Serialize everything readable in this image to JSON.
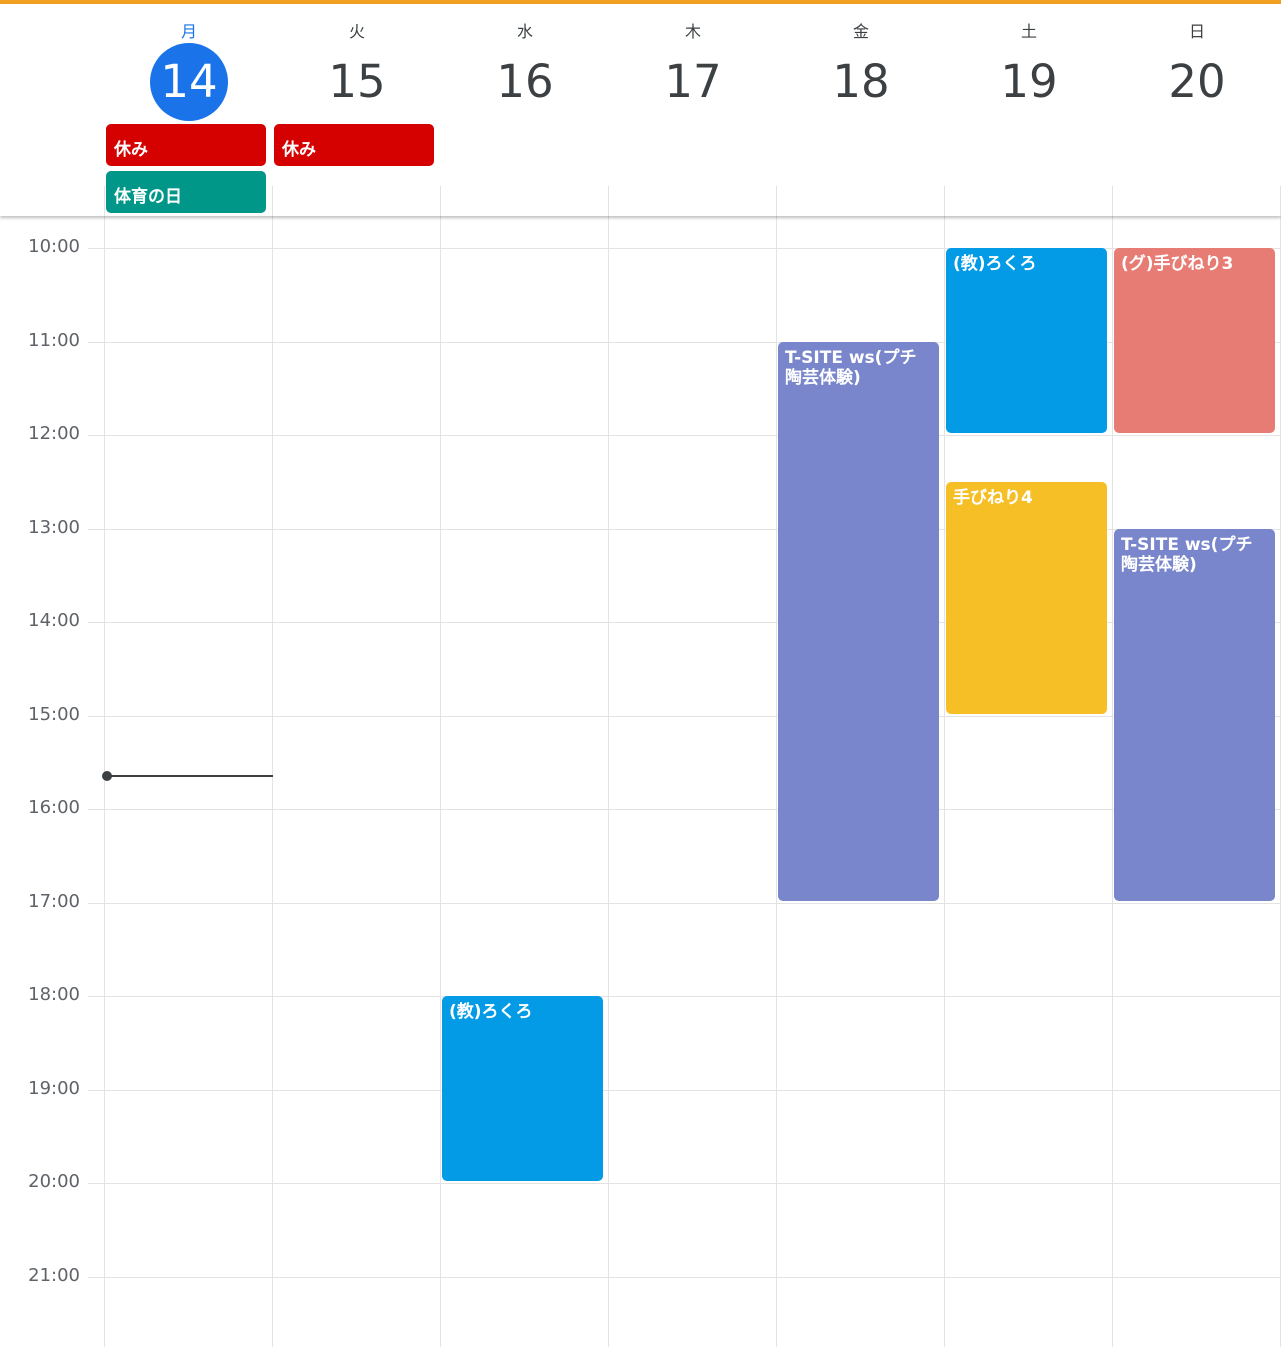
{
  "colors": {
    "today": "#1a73e8",
    "holiday_red": "#d50000",
    "holiday_green": "#009688",
    "blue": "#039be5",
    "lavender": "#7986cb",
    "yellow": "#f6bf26",
    "flamingo": "#e67c73",
    "banner": "#f0a020"
  },
  "days": [
    {
      "weekday": "月",
      "date": "14",
      "today": true
    },
    {
      "weekday": "火",
      "date": "15",
      "today": false
    },
    {
      "weekday": "水",
      "date": "16",
      "today": false
    },
    {
      "weekday": "木",
      "date": "17",
      "today": false
    },
    {
      "weekday": "金",
      "date": "18",
      "today": false
    },
    {
      "weekday": "土",
      "date": "19",
      "today": false
    },
    {
      "weekday": "日",
      "date": "20",
      "today": false
    }
  ],
  "all_day_events": [
    {
      "title": "休み",
      "day": 0,
      "row": 0,
      "color": "holiday_red"
    },
    {
      "title": "休み",
      "day": 1,
      "row": 0,
      "color": "holiday_red"
    },
    {
      "title": "体育の日",
      "day": 0,
      "row": 1,
      "color": "holiday_green"
    }
  ],
  "time_labels": [
    "10:00",
    "11:00",
    "12:00",
    "13:00",
    "14:00",
    "15:00",
    "16:00",
    "17:00",
    "18:00",
    "19:00",
    "20:00",
    "21:00"
  ],
  "events": [
    {
      "title": "(教)ろくろ",
      "day": 5,
      "start": "10:00",
      "end": "12:00",
      "color": "blue"
    },
    {
      "title": "(グ)手びねり3",
      "day": 6,
      "start": "10:00",
      "end": "12:00",
      "color": "flamingo"
    },
    {
      "title": "T-SITE ws(プチ陶芸体験)",
      "day": 4,
      "start": "11:00",
      "end": "17:00",
      "color": "lavender"
    },
    {
      "title": "手びねり4",
      "day": 5,
      "start": "12:30",
      "end": "15:00",
      "color": "yellow"
    },
    {
      "title": "T-SITE ws(プチ陶芸体験)",
      "day": 6,
      "start": "13:00",
      "end": "17:00",
      "color": "lavender"
    },
    {
      "title": "(教)ろくろ",
      "day": 2,
      "start": "18:00",
      "end": "20:00",
      "color": "blue"
    }
  ],
  "current_time": "15:38",
  "current_day": 0
}
